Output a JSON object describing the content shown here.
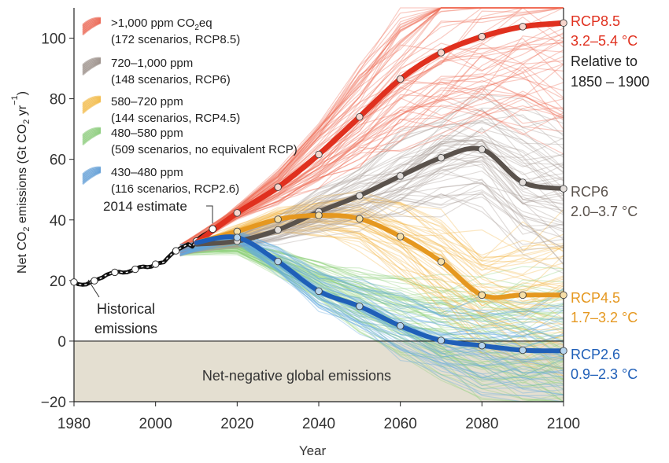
{
  "chart_data": {
    "type": "line",
    "xlabel": "Year",
    "ylabel_parts": [
      "Net CO",
      "2",
      " emissions (Gt CO",
      "2",
      " yr",
      "−1",
      ")"
    ],
    "xlim": [
      1980,
      2100
    ],
    "ylim": [
      -20,
      110
    ],
    "xticks": [
      1980,
      2000,
      2020,
      2040,
      2060,
      2080,
      2100
    ],
    "yticks": [
      -20,
      0,
      20,
      40,
      60,
      80,
      100
    ],
    "grid": false,
    "negative_region_label": "Net-negative global emissions",
    "legend": {
      "placement": "top-left",
      "entries": [
        {
          "line1": ">1,000 ppm CO",
          "line1_sub": "2",
          "line1_tail": "eq",
          "line2": "(172 scenarios, RCP8.5)",
          "color": "#e8503a"
        },
        {
          "line1": "720–1,000 ppm",
          "line1_sub": "",
          "line1_tail": "",
          "line2": "(148 scenarios, RCP6)",
          "color": "#8c8078"
        },
        {
          "line1": "580–720 ppm",
          "line1_sub": "",
          "line1_tail": "",
          "line2": "(144 scenarios, RCP4.5)",
          "color": "#f0b030"
        },
        {
          "line1": "480–580 ppm",
          "line1_sub": "",
          "line1_tail": "",
          "line2": "(509 scenarios, no equivalent RCP)",
          "color": "#7cc46a"
        },
        {
          "line1": "430–480 ppm",
          "line1_sub": "",
          "line1_tail": "",
          "line2": "(116 scenarios, RCP2.6)",
          "color": "#4a90d0"
        }
      ]
    },
    "scenario_counts": [
      172,
      148,
      144,
      509,
      116
    ],
    "scenario_colors": [
      "#ee6a52",
      "#a59a94",
      "#f3b84a",
      "#8fd27a",
      "#62a9df"
    ],
    "historical": {
      "label_lines": [
        "Historical",
        "emissions"
      ],
      "x": [
        1980,
        1981,
        1982,
        1983,
        1984,
        1985,
        1986,
        1987,
        1988,
        1989,
        1990,
        1991,
        1992,
        1993,
        1994,
        1995,
        1996,
        1997,
        1998,
        1999,
        2000,
        2001,
        2002,
        2003,
        2004,
        2005,
        2006,
        2007,
        2008,
        2009,
        2010,
        2011,
        2012,
        2013,
        2014
      ],
      "y": [
        19.5,
        18.8,
        18.6,
        18.7,
        19.4,
        19.9,
        20.5,
        21.0,
        21.9,
        22.4,
        22.7,
        22.9,
        22.6,
        22.7,
        23.2,
        23.7,
        24.4,
        24.6,
        24.4,
        24.6,
        25.4,
        25.8,
        26.0,
        27.5,
        28.8,
        29.8,
        30.6,
        31.3,
        32.0,
        31.2,
        33.0,
        34.3,
        35.2,
        35.9,
        37.0
      ],
      "color": "#111111"
    },
    "estimate_2014": {
      "label": "2014 estimate",
      "x": 2014,
      "y": 37.0
    },
    "series": [
      {
        "name": "RCP8.5",
        "range": "3.2–5.4 °C",
        "color": "#e0301e",
        "marker_fill": "#f7d5cc",
        "x": [
          2010,
          2020,
          2030,
          2040,
          2050,
          2060,
          2070,
          2080,
          2090,
          2100
        ],
        "y": [
          32.5,
          42.3,
          50.8,
          61.6,
          74.0,
          86.5,
          95.2,
          100.5,
          103.8,
          105.0
        ]
      },
      {
        "name": "RCP6",
        "range": "2.0–3.7 °C",
        "color": "#5a524c",
        "marker_fill": "#e3dedb",
        "x": [
          2010,
          2020,
          2030,
          2040,
          2050,
          2060,
          2070,
          2080,
          2090,
          2100
        ],
        "y": [
          32.0,
          33.0,
          36.7,
          42.7,
          48.0,
          54.5,
          60.5,
          63.3,
          52.4,
          50.3
        ]
      },
      {
        "name": "RCP4.5",
        "range": "1.7–3.2 °C",
        "color": "#e59820",
        "marker_fill": "#f6dfa8",
        "x": [
          2010,
          2020,
          2030,
          2040,
          2050,
          2060,
          2070,
          2080,
          2090,
          2100
        ],
        "y": [
          32.5,
          36.2,
          40.2,
          41.5,
          40.4,
          34.5,
          26.2,
          15.2,
          15.2,
          15.2
        ]
      },
      {
        "name": "RCP2.6",
        "range": "0.9–2.3 °C",
        "color": "#1f5fb8",
        "marker_fill": "#b5d4ee",
        "x": [
          2010,
          2020,
          2030,
          2040,
          2050,
          2060,
          2070,
          2080,
          2090,
          2100
        ],
        "y": [
          32.5,
          34.2,
          26.3,
          16.5,
          11.5,
          5.0,
          0.2,
          -1.5,
          -3.0,
          -3.2
        ]
      }
    ],
    "annotation_relative": [
      "Relative to",
      "1850 – 1900"
    ]
  }
}
